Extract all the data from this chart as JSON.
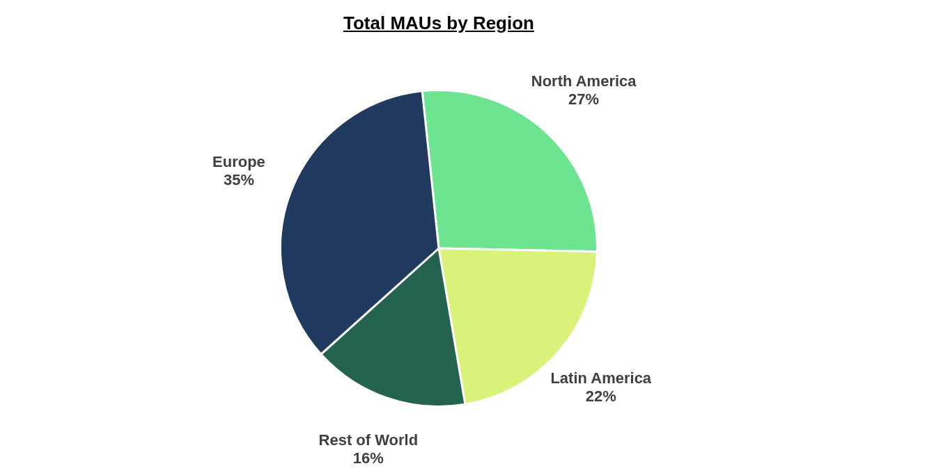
{
  "chart_data": {
    "type": "pie",
    "title": "Total MAUs by Region",
    "categories": [
      "North America",
      "Latin America",
      "Rest of World",
      "Europe"
    ],
    "values": [
      27,
      22,
      16,
      35
    ],
    "value_labels": [
      "27%",
      "22%",
      "16%",
      "35%"
    ],
    "colors": [
      "#6ce490",
      "#d9f27a",
      "#246350",
      "#203a60"
    ],
    "legend": false
  }
}
